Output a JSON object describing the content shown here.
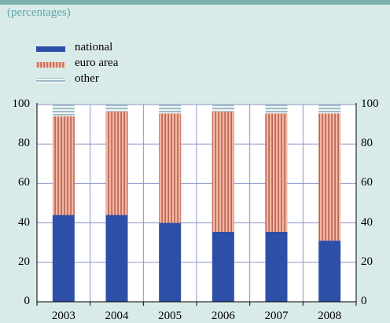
{
  "subtitle": "(percentages)",
  "colors": {
    "background": "#d9ebe9",
    "accent": "#5aa6a6",
    "national": "#2e4fa8",
    "euro_area_fill": "#f2b8a4",
    "euro_area_stripe": "#a84434",
    "other_fill": "#eef6f7",
    "other_stripe": "#6b96a7",
    "grid": "#8b94c9"
  },
  "chart_data": {
    "type": "bar",
    "stacked": true,
    "categories": [
      "2003",
      "2004",
      "2005",
      "2006",
      "2007",
      "2008"
    ],
    "series": [
      {
        "name": "national",
        "values": [
          44,
          44,
          40,
          35.5,
          35.5,
          31
        ]
      },
      {
        "name": "euro area",
        "values": [
          50,
          52.5,
          55.5,
          61,
          60,
          64.5
        ]
      },
      {
        "name": "other",
        "values": [
          6,
          3.5,
          4.5,
          3.5,
          4.5,
          4.5
        ]
      }
    ],
    "ylim": [
      0,
      100
    ],
    "yticks": [
      0,
      20,
      40,
      60,
      80,
      100
    ],
    "grid": true,
    "legend": "top-left",
    "secondary_y_axis": true
  }
}
